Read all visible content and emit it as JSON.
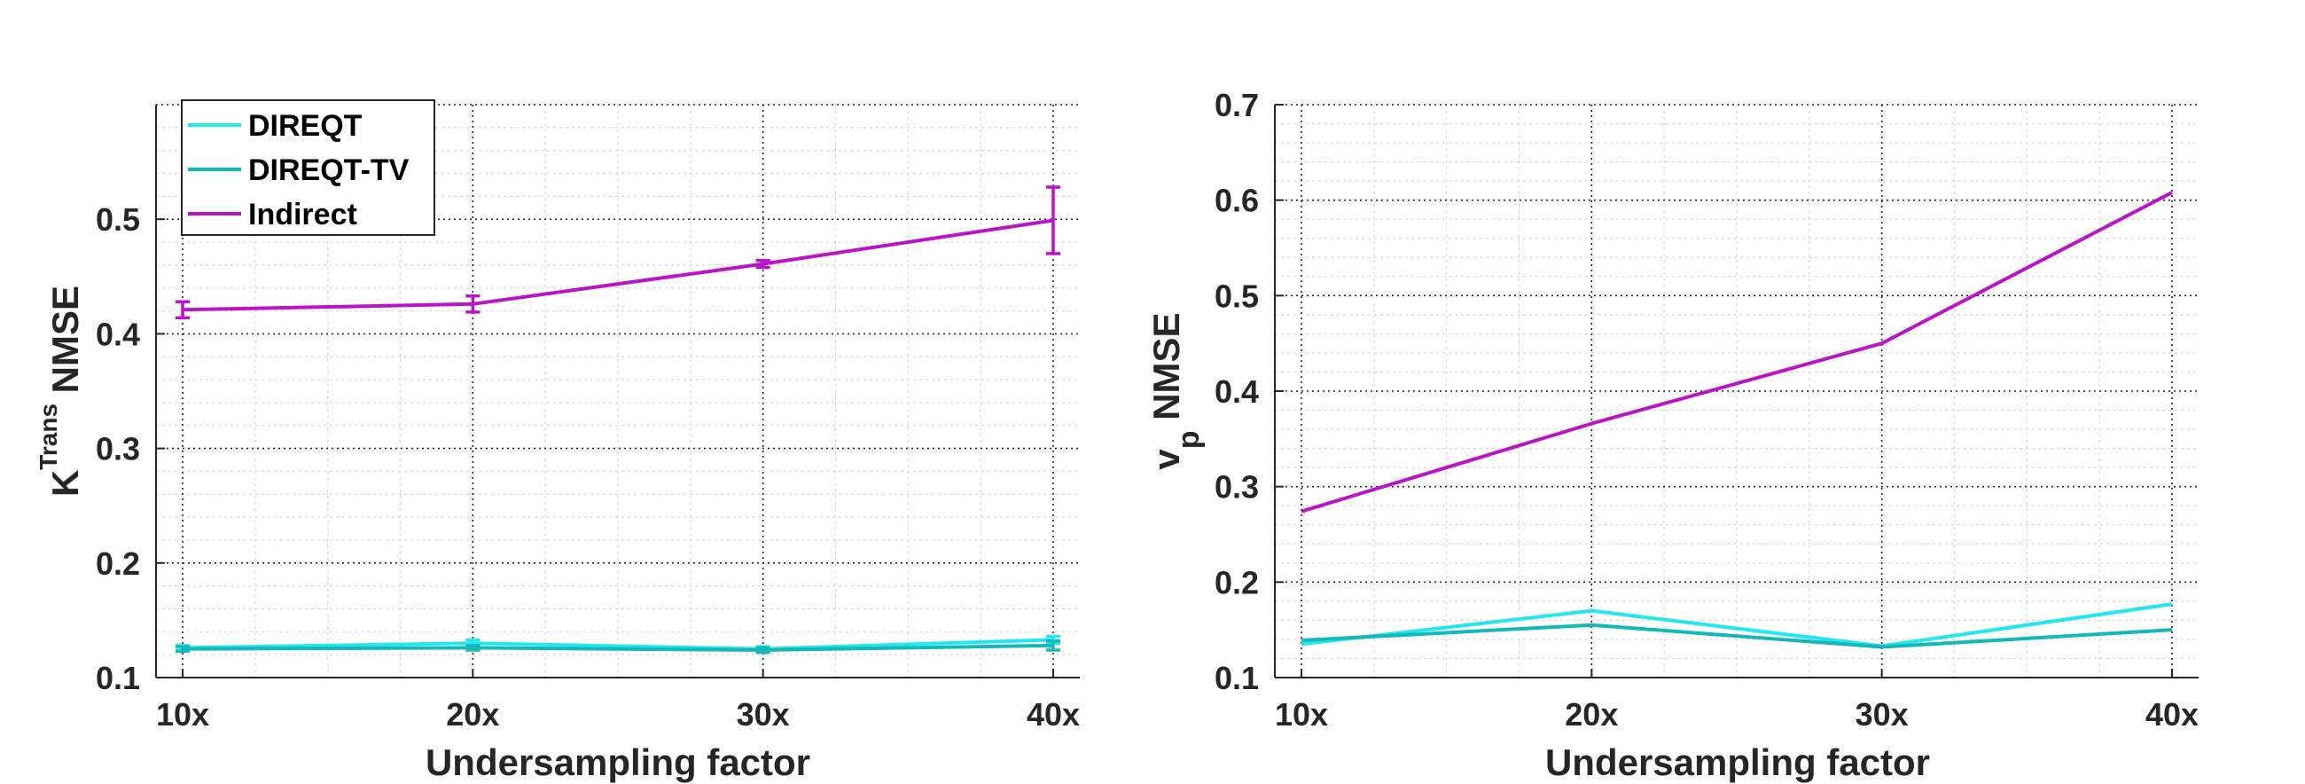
{
  "colors": {
    "DIREQT": "#22e6f0",
    "DIREQT-TV": "#14b8b8",
    "Indirect": "#bb14c8"
  },
  "chart_data": [
    {
      "type": "line",
      "categories": [
        "10x",
        "20x",
        "30x",
        "40x"
      ],
      "xlabel": "Undersampling factor",
      "ylabel_main": "K",
      "ylabel_sup": "Trans",
      "ylabel_tail": " NMSE",
      "ylim": [
        0.1,
        0.6
      ],
      "yticks": [
        "0.1",
        "0.2",
        "0.3",
        "0.4",
        "0.5"
      ],
      "ytick_values": [
        0.1,
        0.2,
        0.3,
        0.4,
        0.5
      ],
      "grid": true,
      "legend_position": "top-left",
      "series": [
        {
          "name": "DIREQT",
          "values": [
            0.126,
            0.13,
            0.125,
            0.133
          ],
          "err": [
            0.002,
            0.003,
            0.002,
            0.003
          ]
        },
        {
          "name": "DIREQT-TV",
          "values": [
            0.125,
            0.126,
            0.124,
            0.128
          ],
          "err": [
            0.002,
            0.002,
            0.002,
            0.004
          ]
        },
        {
          "name": "Indirect",
          "values": [
            0.421,
            0.426,
            0.461,
            0.499
          ],
          "err": [
            0.007,
            0.007,
            0.003,
            0.029
          ]
        }
      ]
    },
    {
      "type": "line",
      "categories": [
        "10x",
        "20x",
        "30x",
        "40x"
      ],
      "xlabel": "Undersampling factor",
      "ylabel_main": "v",
      "ylabel_sub": "p",
      "ylabel_tail": " NMSE",
      "ylim": [
        0.1,
        0.7
      ],
      "yticks": [
        "0.1",
        "0.2",
        "0.3",
        "0.4",
        "0.5",
        "0.6",
        "0.7"
      ],
      "ytick_values": [
        0.1,
        0.2,
        0.3,
        0.4,
        0.5,
        0.6,
        0.7
      ],
      "grid": true,
      "series": [
        {
          "name": "DIREQT",
          "values": [
            0.135,
            0.17,
            0.133,
            0.177
          ]
        },
        {
          "name": "DIREQT-TV",
          "values": [
            0.139,
            0.155,
            0.132,
            0.15
          ]
        },
        {
          "name": "Indirect",
          "values": [
            0.274,
            0.366,
            0.45,
            0.608
          ]
        }
      ]
    }
  ]
}
